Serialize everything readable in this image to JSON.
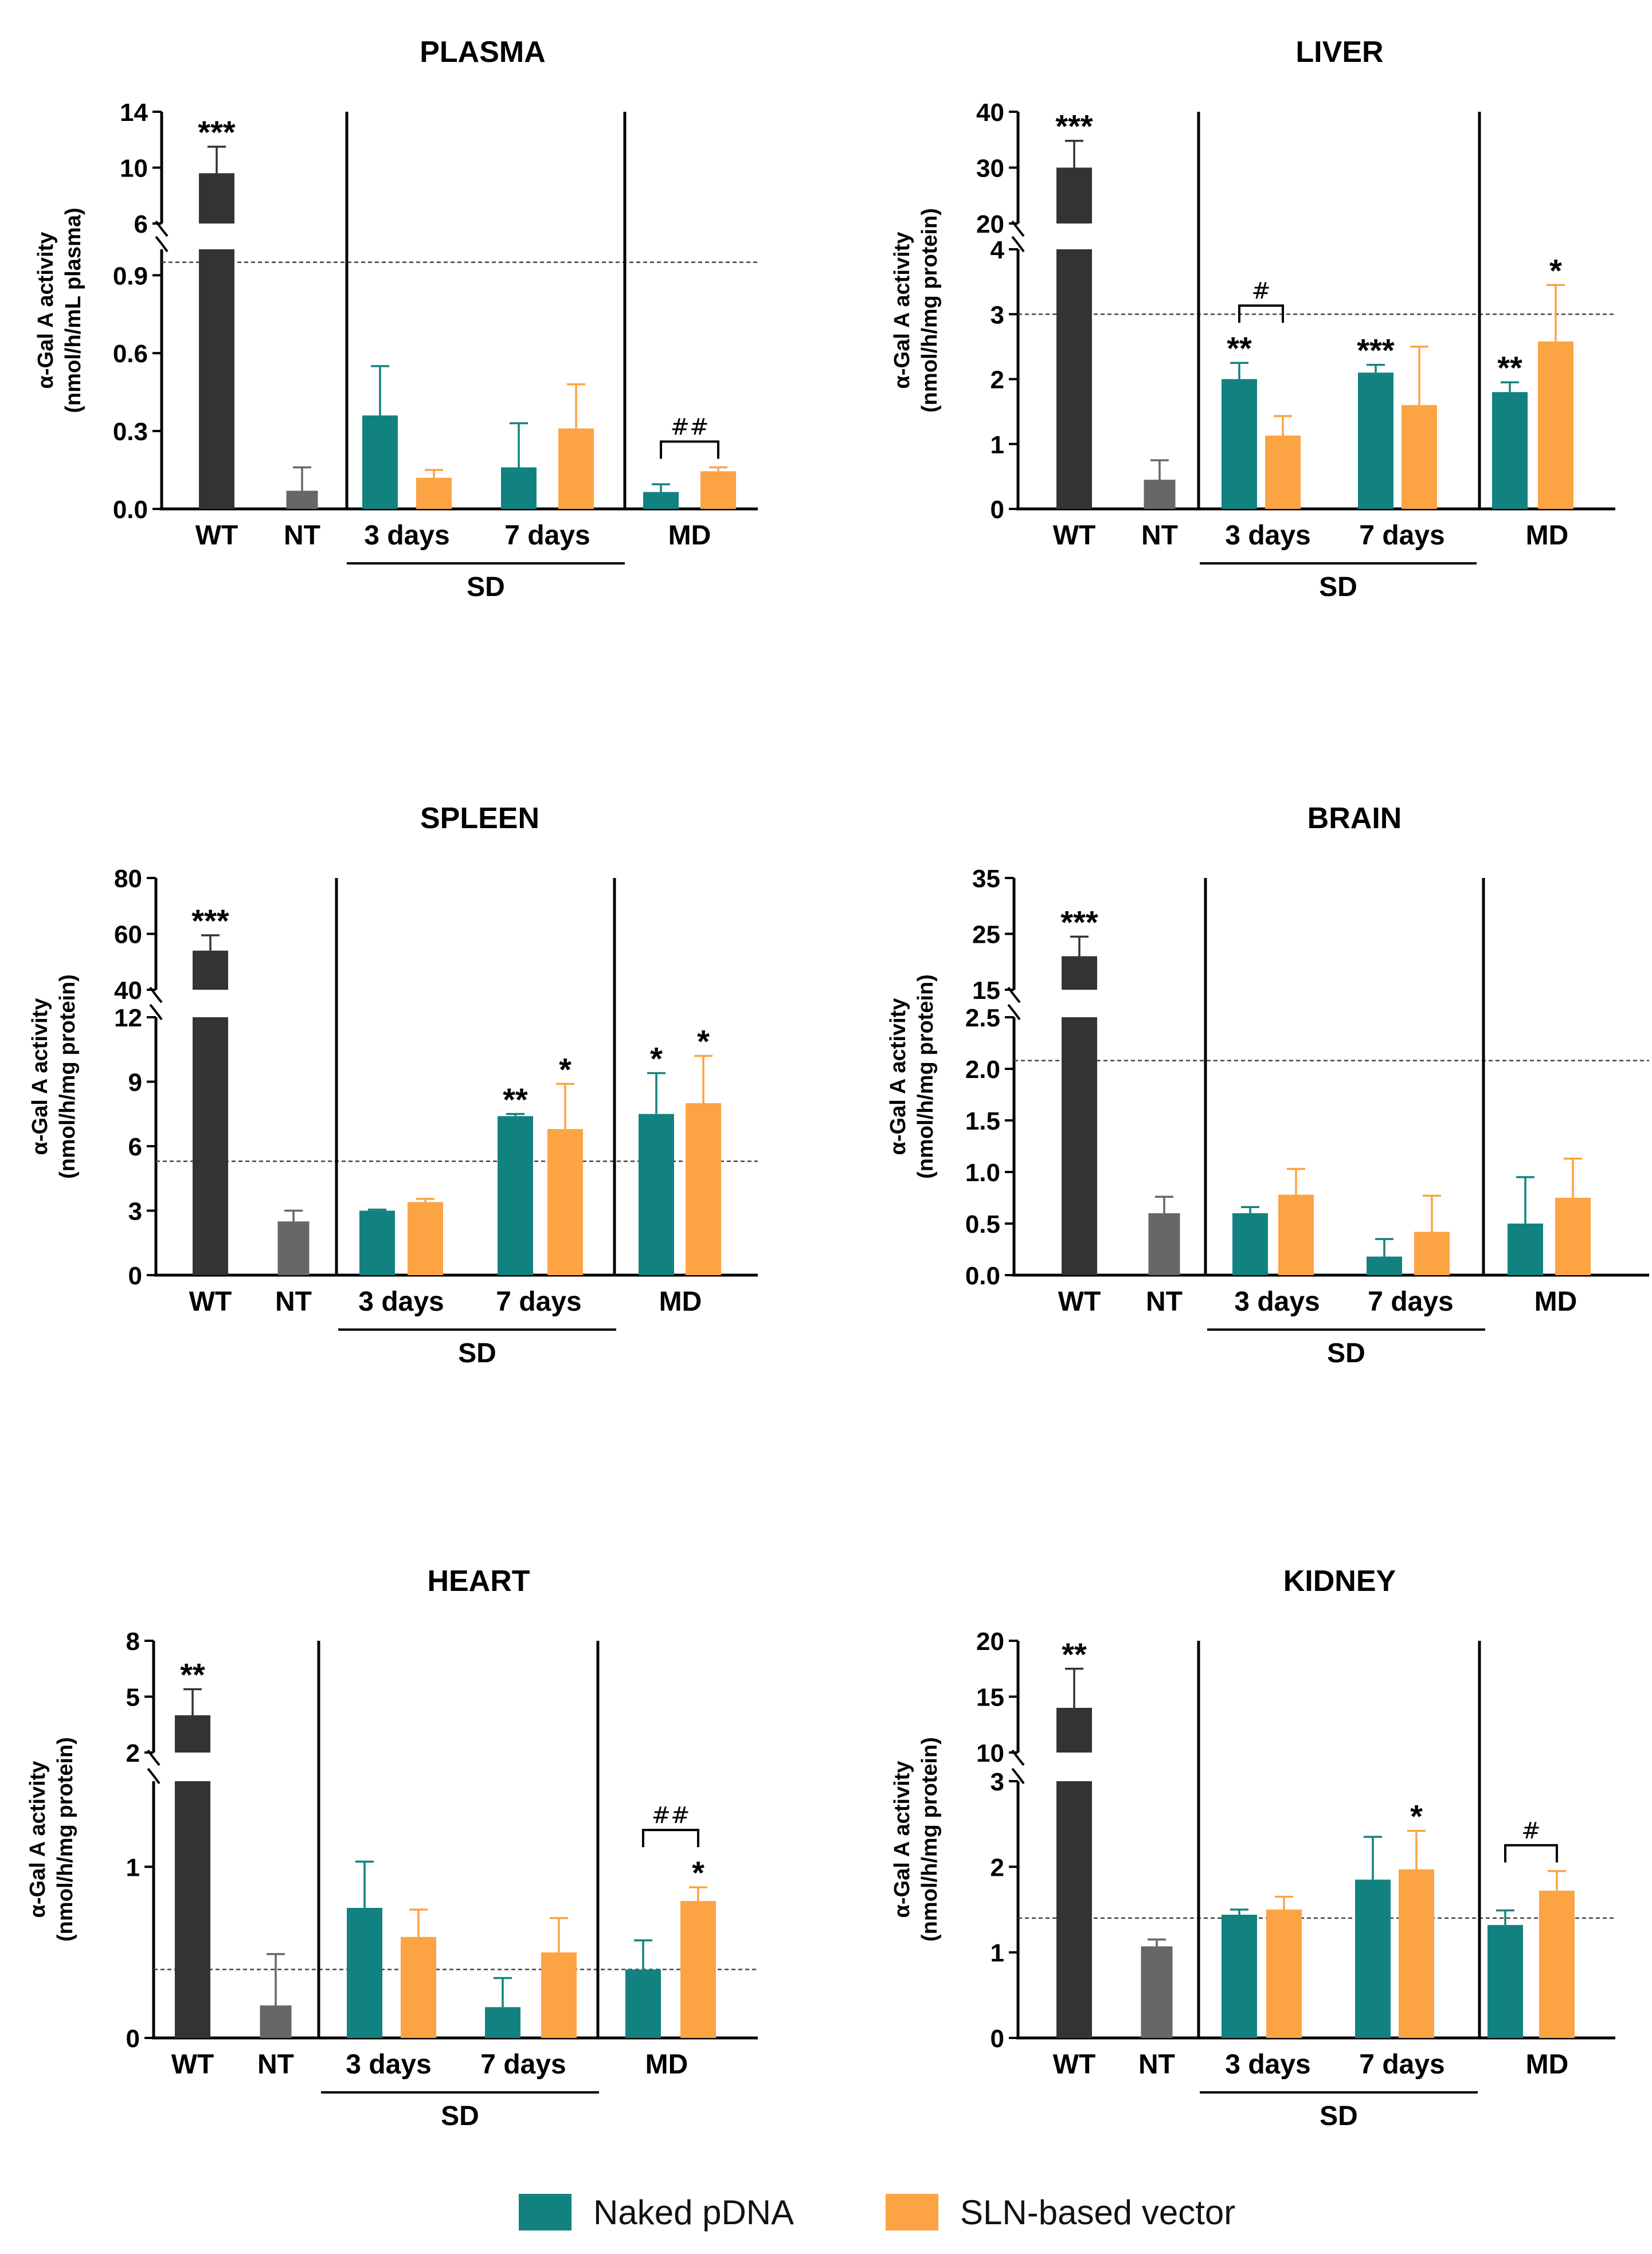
{
  "colors": {
    "wt": "#333333",
    "nt": "#676767",
    "naked": "#128280",
    "sln": "#fca343"
  },
  "legend": {
    "naked_label": "Naked pDNA",
    "sln_label": "SLN-based vector"
  },
  "chart_data": [
    {
      "type": "bar",
      "title": "PLASMA",
      "ylabel_line1": "α-Gal A activity",
      "ylabel_line2": "(nmol/h/mL plasma)",
      "group_label": "SD",
      "categories": [
        "WT",
        "NT",
        "3 days",
        "7 days",
        "MD"
      ],
      "upper_axis": {
        "range": [
          6,
          14
        ],
        "ticks": [
          "14",
          "10",
          "6"
        ],
        "tick_values": [
          14,
          10,
          6
        ]
      },
      "lower_axis": {
        "range": [
          0,
          1
        ],
        "ticks": [
          "0.9",
          "0.6",
          "0.3",
          "0.0"
        ],
        "tick_values": [
          0.9,
          0.6,
          0.3,
          0.0
        ]
      },
      "reference_line": 0.95,
      "bars": [
        {
          "group": "WT",
          "series": "WT",
          "value": 9.6,
          "error": 1.9,
          "sig": "***"
        },
        {
          "group": "NT",
          "series": "NT",
          "value": 0.07,
          "error": 0.09,
          "sig": ""
        },
        {
          "group": "3 days",
          "series": "Naked pDNA",
          "value": 0.36,
          "error": 0.19,
          "sig": ""
        },
        {
          "group": "3 days",
          "series": "SLN-based vector",
          "value": 0.12,
          "error": 0.03,
          "sig": ""
        },
        {
          "group": "7 days",
          "series": "Naked pDNA",
          "value": 0.16,
          "error": 0.17,
          "sig": ""
        },
        {
          "group": "7 days",
          "series": "SLN-based vector",
          "value": 0.31,
          "error": 0.17,
          "sig": ""
        },
        {
          "group": "MD",
          "series": "Naked pDNA",
          "value": 0.065,
          "error": 0.03,
          "sig": ""
        },
        {
          "group": "MD",
          "series": "SLN-based vector",
          "value": 0.145,
          "error": 0.015,
          "sig": ""
        }
      ],
      "brackets": [
        {
          "group": "MD",
          "label": "##"
        }
      ]
    },
    {
      "type": "bar",
      "title": "LIVER",
      "ylabel_line1": "α-Gal A activity",
      "ylabel_line2": "(nmol/h/mg protein)",
      "group_label": "SD",
      "categories": [
        "WT",
        "NT",
        "3 days",
        "7 days",
        "MD"
      ],
      "upper_axis": {
        "range": [
          20,
          40
        ],
        "ticks": [
          "40",
          "30",
          "20"
        ],
        "tick_values": [
          40,
          30,
          20
        ]
      },
      "lower_axis": {
        "range": [
          0,
          4
        ],
        "ticks": [
          "4",
          "3",
          "2",
          "1",
          "0"
        ],
        "tick_values": [
          4,
          3,
          2,
          1,
          0
        ]
      },
      "reference_line": 3.0,
      "bars": [
        {
          "group": "WT",
          "series": "WT",
          "value": 30,
          "error": 4.8,
          "sig": "***"
        },
        {
          "group": "NT",
          "series": "NT",
          "value": 0.45,
          "error": 0.3,
          "sig": ""
        },
        {
          "group": "3 days",
          "series": "Naked pDNA",
          "value": 2.0,
          "error": 0.25,
          "sig": "**"
        },
        {
          "group": "3 days",
          "series": "SLN-based vector",
          "value": 1.13,
          "error": 0.3,
          "sig": ""
        },
        {
          "group": "7 days",
          "series": "Naked pDNA",
          "value": 2.1,
          "error": 0.12,
          "sig": "***"
        },
        {
          "group": "7 days",
          "series": "SLN-based vector",
          "value": 1.6,
          "error": 0.9,
          "sig": ""
        },
        {
          "group": "MD",
          "series": "Naked pDNA",
          "value": 1.8,
          "error": 0.15,
          "sig": "**"
        },
        {
          "group": "MD",
          "series": "SLN-based vector",
          "value": 2.58,
          "error": 0.87,
          "sig": "*"
        }
      ],
      "brackets": [
        {
          "group": "3 days",
          "label": "#"
        }
      ]
    },
    {
      "type": "bar",
      "title": "SPLEEN",
      "ylabel_line1": "α-Gal A activity",
      "ylabel_line2": "(nmol/h/mg protein)",
      "group_label": "SD",
      "categories": [
        "WT",
        "NT",
        "3 days",
        "7 days",
        "MD"
      ],
      "upper_axis": {
        "range": [
          40,
          80
        ],
        "ticks": [
          "80",
          "60",
          "40"
        ],
        "tick_values": [
          80,
          60,
          40
        ]
      },
      "lower_axis": {
        "range": [
          0,
          12
        ],
        "ticks": [
          "12",
          "9",
          "6",
          "3",
          "0"
        ],
        "tick_values": [
          12,
          9,
          6,
          3,
          0
        ]
      },
      "reference_line": 5.3,
      "bars": [
        {
          "group": "WT",
          "series": "WT",
          "value": 54,
          "error": 5.5,
          "sig": "***"
        },
        {
          "group": "NT",
          "series": "NT",
          "value": 2.5,
          "error": 0.5,
          "sig": ""
        },
        {
          "group": "3 days",
          "series": "Naked pDNA",
          "value": 3.0,
          "error": 0.05,
          "sig": ""
        },
        {
          "group": "3 days",
          "series": "SLN-based vector",
          "value": 3.4,
          "error": 0.15,
          "sig": ""
        },
        {
          "group": "7 days",
          "series": "Naked pDNA",
          "value": 7.4,
          "error": 0.1,
          "sig": "**"
        },
        {
          "group": "7 days",
          "series": "SLN-based vector",
          "value": 6.8,
          "error": 2.1,
          "sig": "*"
        },
        {
          "group": "MD",
          "series": "Naked pDNA",
          "value": 7.5,
          "error": 1.9,
          "sig": "*"
        },
        {
          "group": "MD",
          "series": "SLN-based vector",
          "value": 8.0,
          "error": 2.2,
          "sig": "*"
        }
      ],
      "brackets": []
    },
    {
      "type": "bar",
      "title": "BRAIN",
      "ylabel_line1": "α-Gal A activity",
      "ylabel_line2": "(nmol/h/mg protein)",
      "group_label": "SD",
      "categories": [
        "WT",
        "NT",
        "3 days",
        "7 days",
        "MD"
      ],
      "upper_axis": {
        "range": [
          15,
          35
        ],
        "ticks": [
          "35",
          "25",
          "15"
        ],
        "tick_values": [
          35,
          25,
          15
        ]
      },
      "lower_axis": {
        "range": [
          0,
          2.5
        ],
        "ticks": [
          "2.5",
          "2.0",
          "1.5",
          "1.0",
          "0.5",
          "0.0"
        ],
        "tick_values": [
          2.5,
          2.0,
          1.5,
          1.0,
          0.5,
          0.0
        ]
      },
      "reference_line": 2.08,
      "bars": [
        {
          "group": "WT",
          "series": "WT",
          "value": 21,
          "error": 3.5,
          "sig": "***"
        },
        {
          "group": "NT",
          "series": "NT",
          "value": 0.6,
          "error": 0.16,
          "sig": ""
        },
        {
          "group": "3 days",
          "series": "Naked pDNA",
          "value": 0.6,
          "error": 0.06,
          "sig": ""
        },
        {
          "group": "3 days",
          "series": "SLN-based vector",
          "value": 0.78,
          "error": 0.25,
          "sig": ""
        },
        {
          "group": "7 days",
          "series": "Naked pDNA",
          "value": 0.18,
          "error": 0.17,
          "sig": ""
        },
        {
          "group": "7 days",
          "series": "SLN-based vector",
          "value": 0.42,
          "error": 0.35,
          "sig": ""
        },
        {
          "group": "MD",
          "series": "Naked pDNA",
          "value": 0.5,
          "error": 0.45,
          "sig": ""
        },
        {
          "group": "MD",
          "series": "SLN-based vector",
          "value": 0.75,
          "error": 0.38,
          "sig": ""
        }
      ],
      "brackets": []
    },
    {
      "type": "bar",
      "title": "HEART",
      "ylabel_line1": "α-Gal A activity",
      "ylabel_line2": "(nmol/h/mg protein)",
      "group_label": "SD",
      "categories": [
        "WT",
        "NT",
        "3 days",
        "7 days",
        "MD"
      ],
      "upper_axis": {
        "range": [
          2,
          8
        ],
        "ticks": [
          "8",
          "5",
          "2"
        ],
        "tick_values": [
          8,
          5,
          2
        ]
      },
      "lower_axis": {
        "range": [
          0,
          1.5
        ],
        "ticks": [
          "1",
          "0"
        ],
        "tick_values": [
          1,
          0
        ]
      },
      "reference_line": 0.4,
      "bars": [
        {
          "group": "WT",
          "series": "WT",
          "value": 4.0,
          "error": 1.4,
          "sig": "**"
        },
        {
          "group": "NT",
          "series": "NT",
          "value": 0.19,
          "error": 0.3,
          "sig": ""
        },
        {
          "group": "3 days",
          "series": "Naked pDNA",
          "value": 0.76,
          "error": 0.27,
          "sig": ""
        },
        {
          "group": "3 days",
          "series": "SLN-based vector",
          "value": 0.59,
          "error": 0.16,
          "sig": ""
        },
        {
          "group": "7 days",
          "series": "Naked pDNA",
          "value": 0.18,
          "error": 0.17,
          "sig": ""
        },
        {
          "group": "7 days",
          "series": "SLN-based vector",
          "value": 0.5,
          "error": 0.2,
          "sig": ""
        },
        {
          "group": "MD",
          "series": "Naked pDNA",
          "value": 0.4,
          "error": 0.17,
          "sig": ""
        },
        {
          "group": "MD",
          "series": "SLN-based vector",
          "value": 0.8,
          "error": 0.08,
          "sig": "*"
        }
      ],
      "brackets": [
        {
          "group": "MD",
          "label": "##"
        }
      ]
    },
    {
      "type": "bar",
      "title": "KIDNEY",
      "ylabel_line1": "α-Gal A activity",
      "ylabel_line2": "(nmol/h/mg protein)",
      "group_label": "SD",
      "categories": [
        "WT",
        "NT",
        "3 days",
        "7 days",
        "MD"
      ],
      "upper_axis": {
        "range": [
          10,
          20
        ],
        "ticks": [
          "20",
          "15",
          "10"
        ],
        "tick_values": [
          20,
          15,
          10
        ]
      },
      "lower_axis": {
        "range": [
          0,
          3
        ],
        "ticks": [
          "3",
          "2",
          "1",
          "0"
        ],
        "tick_values": [
          3,
          2,
          1,
          0
        ]
      },
      "reference_line": 1.4,
      "bars": [
        {
          "group": "WT",
          "series": "WT",
          "value": 14,
          "error": 3.5,
          "sig": "**"
        },
        {
          "group": "NT",
          "series": "NT",
          "value": 1.07,
          "error": 0.08,
          "sig": ""
        },
        {
          "group": "3 days",
          "series": "Naked pDNA",
          "value": 1.44,
          "error": 0.06,
          "sig": ""
        },
        {
          "group": "3 days",
          "series": "SLN-based vector",
          "value": 1.5,
          "error": 0.15,
          "sig": ""
        },
        {
          "group": "7 days",
          "series": "Naked pDNA",
          "value": 1.85,
          "error": 0.5,
          "sig": ""
        },
        {
          "group": "7 days",
          "series": "SLN-based vector",
          "value": 1.97,
          "error": 0.45,
          "sig": "*"
        },
        {
          "group": "MD",
          "series": "Naked pDNA",
          "value": 1.32,
          "error": 0.17,
          "sig": ""
        },
        {
          "group": "MD",
          "series": "SLN-based vector",
          "value": 1.72,
          "error": 0.23,
          "sig": ""
        }
      ],
      "brackets": [
        {
          "group": "MD",
          "label": "#"
        }
      ]
    }
  ]
}
